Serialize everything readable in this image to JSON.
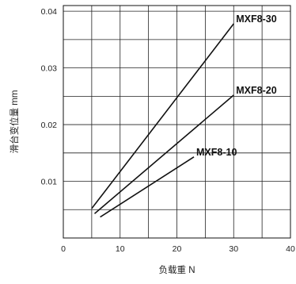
{
  "chart_data": {
    "type": "line",
    "xlabel": "负载重 N",
    "ylabel": "滑台变位量 mm",
    "xlim": [
      0,
      40
    ],
    "ylim": [
      0,
      0.041
    ],
    "x_ticks": [
      "0",
      "10",
      "20",
      "30",
      "40"
    ],
    "y_ticks": [
      "0.01",
      "0.02",
      "0.03",
      "0.04"
    ],
    "grid": true,
    "series": [
      {
        "name": "MXF8-30",
        "x": [
          5,
          30
        ],
        "y": [
          0.0052,
          0.0378
        ]
      },
      {
        "name": "MXF8-20",
        "x": [
          5.5,
          30
        ],
        "y": [
          0.0043,
          0.0252
        ]
      },
      {
        "name": "MXF8-10",
        "x": [
          6.5,
          23
        ],
        "y": [
          0.0037,
          0.0143
        ]
      }
    ]
  }
}
